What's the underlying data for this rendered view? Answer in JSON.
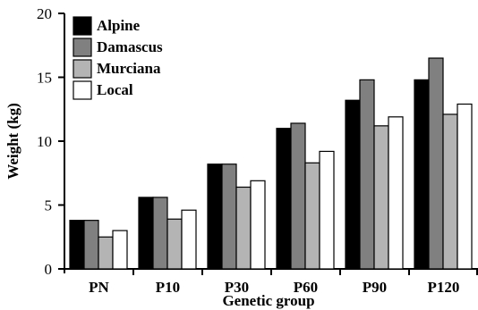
{
  "chart_data": {
    "type": "bar",
    "title": "",
    "xlabel": "Genetic group",
    "ylabel": "Weight (kg)",
    "ylim": [
      0,
      20
    ],
    "yticks": [
      "0",
      "5",
      "10",
      "15",
      "20"
    ],
    "categories": [
      "PN",
      "P10",
      "P30",
      "P60",
      "P90",
      "P120"
    ],
    "series": [
      {
        "name": "Alpine",
        "color": "#000000",
        "values": [
          3.8,
          5.6,
          8.2,
          11.0,
          13.2,
          14.8
        ]
      },
      {
        "name": "Damascus",
        "color": "#808080",
        "values": [
          3.8,
          5.6,
          8.2,
          11.4,
          14.8,
          16.5
        ]
      },
      {
        "name": "Murciana",
        "color": "#b4b4b4",
        "values": [
          2.5,
          3.9,
          6.4,
          8.3,
          11.2,
          12.1
        ]
      },
      {
        "name": "Local",
        "color": "#ffffff",
        "values": [
          3.0,
          4.6,
          6.9,
          9.2,
          11.9,
          12.9
        ]
      }
    ],
    "legend": "top-left",
    "grid": false
  }
}
